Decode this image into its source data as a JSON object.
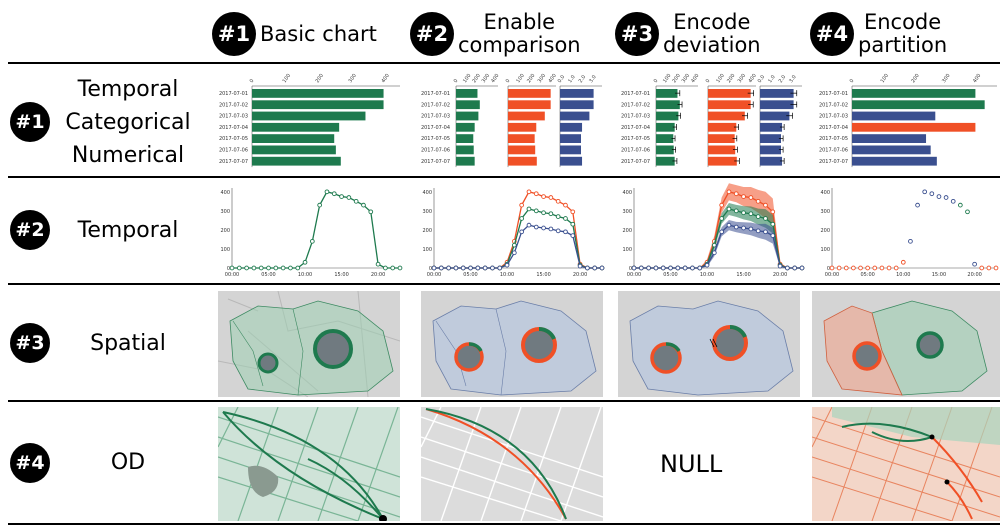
{
  "columns": [
    {
      "badge": "#1",
      "title_lines": [
        "Basic chart"
      ]
    },
    {
      "badge": "#2",
      "title_lines": [
        "Enable",
        "comparison"
      ]
    },
    {
      "badge": "#3",
      "title_lines": [
        "Encode",
        "deviation"
      ]
    },
    {
      "badge": "#4",
      "title_lines": [
        "Encode",
        "partition"
      ]
    }
  ],
  "rows": [
    {
      "badge": "#1",
      "labels": [
        "Temporal",
        "Categorical",
        "Numerical"
      ]
    },
    {
      "badge": "#2",
      "labels": [
        "Temporal"
      ]
    },
    {
      "badge": "#3",
      "labels": [
        "Spatial"
      ]
    },
    {
      "badge": "#4",
      "labels": [
        "OD"
      ]
    }
  ],
  "null_label": "NULL",
  "colors": {
    "green": "#1e7a4e",
    "red": "#f05026",
    "blue": "#3a4f8f",
    "map_gray": "#cfcfcf",
    "circle_fill": "#707a80"
  },
  "chart_data": [
    {
      "type": "bar",
      "categories": [
        "2017-07-01",
        "2017-07-02",
        "2017-07-03",
        "2017-07-04",
        "2017-07-05",
        "2017-07-06",
        "2017-07-07"
      ],
      "x_ticks": [
        "0",
        "100",
        "200",
        "300",
        "400"
      ],
      "x_ticks_small": [
        "0",
        "100",
        "200",
        "300",
        "400"
      ],
      "x_ticks_tiny": [
        "0.0",
        "1.0",
        "2.0",
        "3.0"
      ],
      "series": [
        {
          "values": [
            400,
            400,
            345,
            265,
            250,
            255,
            270
          ]
        },
        {
          "values": [
            230,
            255,
            240,
            200,
            185,
            190,
            200
          ]
        },
        {
          "values": [
            3.2,
            3.2,
            2.8,
            2.1,
            2.0,
            2.0,
            2.1
          ]
        }
      ],
      "errors": [
        [
          28,
          24,
          26,
          22,
          20,
          21,
          24
        ],
        [
          25,
          24,
          23,
          20,
          19,
          20,
          24
        ],
        [
          0.3,
          0.3,
          0.3,
          0.2,
          0.2,
          0.2,
          0.2
        ]
      ],
      "partition_values": [
        400,
        430,
        270,
        400,
        240,
        255,
        275
      ]
    },
    {
      "type": "line",
      "x_ticks": [
        "00:00",
        "05:00",
        "10:00",
        "15:00",
        "20:00"
      ],
      "y_ticks": [
        "0",
        "100",
        "200",
        "300",
        "400"
      ],
      "x": [
        0,
        1,
        2,
        3,
        4,
        5,
        6,
        7,
        8,
        9,
        10,
        11,
        12,
        13,
        14,
        15,
        16,
        17,
        18,
        19,
        20,
        21,
        22,
        23
      ],
      "series": [
        {
          "values": [
            0,
            0,
            0,
            0,
            0,
            0,
            0,
            0,
            0,
            0,
            30,
            140,
            330,
            400,
            390,
            375,
            370,
            350,
            330,
            295,
            20,
            0,
            0,
            0
          ]
        },
        {
          "values": [
            0,
            0,
            0,
            0,
            0,
            0,
            0,
            0,
            0,
            0,
            20,
            120,
            260,
            310,
            300,
            290,
            285,
            270,
            260,
            230,
            15,
            0,
            0,
            0
          ]
        },
        {
          "values": [
            0,
            0,
            0,
            0,
            0,
            0,
            0,
            0,
            0,
            0,
            15,
            80,
            190,
            225,
            215,
            210,
            205,
            195,
            190,
            170,
            10,
            0,
            0,
            0
          ]
        }
      ],
      "band_width": [
        0,
        0,
        0,
        0,
        0,
        0,
        0,
        0,
        0,
        0,
        15,
        30,
        40,
        45,
        45,
        50,
        55,
        60,
        70,
        70,
        10,
        0,
        0,
        0
      ]
    }
  ]
}
